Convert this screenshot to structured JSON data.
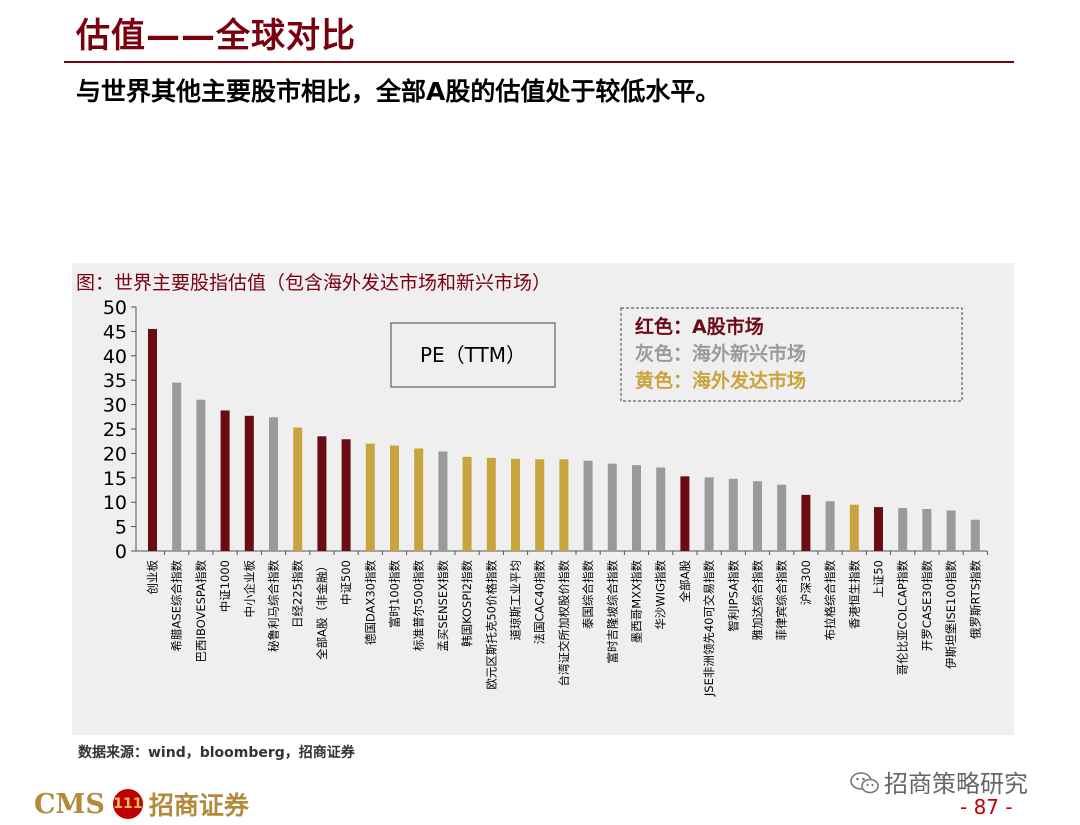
{
  "header": {
    "title": "估值——全球对比",
    "subtitle": "与世界其他主要股市相比，全部A股的估值处于较低水平。"
  },
  "figure": {
    "caption": "图：世界主要股指估值（包含海外发达市场和新兴市场）"
  },
  "footer": {
    "source": "数据来源：wind，bloomberg，招商证券",
    "wechat": "招商策略研究",
    "page": "- 87 -",
    "logo_cms": "CMS",
    "logo_badge": "111",
    "logo_cn": "招商证券"
  },
  "chart_data": {
    "type": "bar",
    "metric_label": "PE（TTM）",
    "ylim": [
      0,
      50
    ],
    "yticks": [
      0,
      5,
      10,
      15,
      20,
      25,
      30,
      35,
      40,
      45,
      50
    ],
    "colors": {
      "a_share": "#6b0b14",
      "emerging": "#9a9a9a",
      "developed": "#c9a43c"
    },
    "legend": [
      {
        "group": "a_share",
        "text": "红色：A股市场"
      },
      {
        "group": "emerging",
        "text": "灰色：海外新兴市场"
      },
      {
        "group": "developed",
        "text": "黄色：海外发达市场"
      }
    ],
    "categories": [
      "创业板",
      "希腊ASE综合指数",
      "巴西IBOVESPA指数",
      "中证1000",
      "中小企业板",
      "秘鲁利马综合指数",
      "日经225指数",
      "全部A股（非金融）",
      "中证500",
      "德国DAX30指数",
      "富时100指数",
      "标准普尔500指数",
      "孟买SENSEX指数",
      "韩国KOSPI2指数",
      "欧元区斯托克50价格指数",
      "道琼斯工业平均",
      "法国CAC40指数",
      "台湾证交所加权股价指数",
      "泰国综合指数",
      "富时吉隆坡综合指数",
      "墨西哥MXX指数",
      "华沙WIG指数",
      "全部A股",
      "JSE非洲领先40可交易指数",
      "智利IPSA指数",
      "雅加达综合指数",
      "菲律宾综合指数",
      "沪深300",
      "布拉格综合指数",
      "香港恒生指数",
      "上证50",
      "哥伦比亚COLCAP指数",
      "开罗CASE30指数",
      "伊斯坦堡ISE100指数",
      "俄罗斯RTS指数"
    ],
    "values": [
      45.5,
      34.5,
      31,
      28.8,
      27.7,
      27.4,
      25.3,
      23.5,
      22.9,
      22,
      21.6,
      21,
      20.4,
      19.3,
      19.1,
      18.9,
      18.8,
      18.8,
      18.5,
      17.9,
      17.6,
      17.1,
      15.3,
      15.1,
      14.8,
      14.3,
      13.6,
      11.5,
      10.2,
      9.5,
      9,
      8.8,
      8.6,
      8.3,
      6.4
    ],
    "groups": [
      "a_share",
      "emerging",
      "emerging",
      "a_share",
      "a_share",
      "emerging",
      "developed",
      "a_share",
      "a_share",
      "developed",
      "developed",
      "developed",
      "emerging",
      "developed",
      "developed",
      "developed",
      "developed",
      "developed",
      "emerging",
      "emerging",
      "emerging",
      "emerging",
      "a_share",
      "emerging",
      "emerging",
      "emerging",
      "emerging",
      "a_share",
      "emerging",
      "developed",
      "a_share",
      "emerging",
      "emerging",
      "emerging",
      "emerging"
    ]
  }
}
